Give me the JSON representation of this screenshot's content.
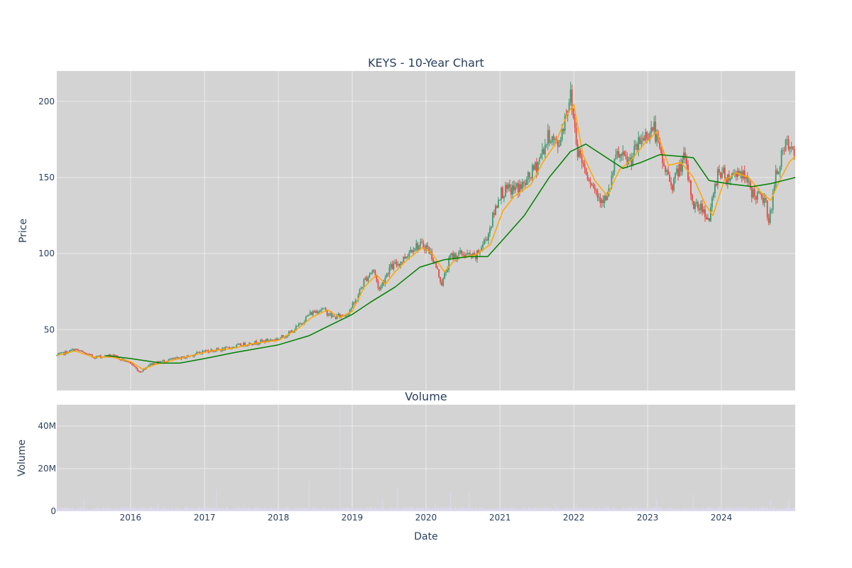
{
  "colors": {
    "plot_bg": "#d3d3d3",
    "grid": "#ebebeb",
    "text": "#2a3f5f",
    "candle_up": "#3d9970",
    "candle_down": "#e8473f",
    "ma_short": "#ffa500",
    "ma_long": "#008000",
    "volume": "#dcd9ee"
  },
  "chart_data": [
    {
      "type": "candlestick",
      "title": "KEYS - 10-Year Chart",
      "xlabel": "",
      "ylabel": "Price",
      "xlim": [
        "2015-01-01",
        "2024-12-31"
      ],
      "ylim": [
        10,
        220
      ],
      "yticks": [
        50,
        100,
        150,
        200
      ],
      "grid": true,
      "series": [
        {
          "kind": "ohlc-approx-close",
          "points": [
            [
              "2015-01-01",
              33
            ],
            [
              "2015-04-01",
              37
            ],
            [
              "2015-07-01",
              32
            ],
            [
              "2015-10-01",
              33
            ],
            [
              "2016-01-01",
              28
            ],
            [
              "2016-02-15",
              22
            ],
            [
              "2016-04-01",
              27
            ],
            [
              "2016-07-01",
              30
            ],
            [
              "2016-10-01",
              32
            ],
            [
              "2017-01-01",
              36
            ],
            [
              "2017-04-01",
              37
            ],
            [
              "2017-07-01",
              40
            ],
            [
              "2017-10-01",
              42
            ],
            [
              "2018-01-01",
              44
            ],
            [
              "2018-03-01",
              48
            ],
            [
              "2018-04-15",
              53
            ],
            [
              "2018-06-01",
              60
            ],
            [
              "2018-08-01",
              64
            ],
            [
              "2018-10-01",
              58
            ],
            [
              "2018-12-01",
              60
            ],
            [
              "2019-01-15",
              68
            ],
            [
              "2019-03-01",
              82
            ],
            [
              "2019-04-15",
              90
            ],
            [
              "2019-05-15",
              76
            ],
            [
              "2019-07-01",
              90
            ],
            [
              "2019-09-01",
              95
            ],
            [
              "2019-11-01",
              105
            ],
            [
              "2020-01-01",
              105
            ],
            [
              "2020-02-01",
              98
            ],
            [
              "2020-03-20",
              80
            ],
            [
              "2020-05-01",
              98
            ],
            [
              "2020-07-01",
              100
            ],
            [
              "2020-09-01",
              97
            ],
            [
              "2020-11-01",
              112
            ],
            [
              "2021-01-01",
              140
            ],
            [
              "2021-03-01",
              142
            ],
            [
              "2021-05-01",
              145
            ],
            [
              "2021-07-01",
              158
            ],
            [
              "2021-09-01",
              178
            ],
            [
              "2021-10-15",
              170
            ],
            [
              "2021-12-15",
              205
            ],
            [
              "2022-01-20",
              168
            ],
            [
              "2022-03-01",
              155
            ],
            [
              "2022-05-01",
              138
            ],
            [
              "2022-06-15",
              135
            ],
            [
              "2022-08-01",
              165
            ],
            [
              "2022-10-01",
              160
            ],
            [
              "2022-12-01",
              175
            ],
            [
              "2023-02-01",
              183
            ],
            [
              "2023-03-15",
              160
            ],
            [
              "2023-05-01",
              145
            ],
            [
              "2023-07-01",
              163
            ],
            [
              "2023-08-15",
              132
            ],
            [
              "2023-10-01",
              130
            ],
            [
              "2023-11-01",
              122
            ],
            [
              "2023-12-15",
              155
            ],
            [
              "2024-02-01",
              150
            ],
            [
              "2024-04-01",
              155
            ],
            [
              "2024-06-01",
              140
            ],
            [
              "2024-08-01",
              135
            ],
            [
              "2024-08-25",
              122
            ],
            [
              "2024-10-01",
              155
            ],
            [
              "2024-11-20",
              172
            ],
            [
              "2024-12-31",
              162
            ]
          ]
        },
        {
          "name": "",
          "kind": "line",
          "color_key": "ma_short",
          "points": [
            [
              "2015-01-01",
              33
            ],
            [
              "2015-04-01",
              36
            ],
            [
              "2015-07-01",
              32
            ],
            [
              "2015-10-01",
              32
            ],
            [
              "2016-01-01",
              29
            ],
            [
              "2016-03-01",
              24
            ],
            [
              "2016-05-01",
              27
            ],
            [
              "2016-08-01",
              30
            ],
            [
              "2016-11-01",
              33
            ],
            [
              "2017-02-01",
              36
            ],
            [
              "2017-06-01",
              38
            ],
            [
              "2017-09-01",
              41
            ],
            [
              "2018-01-01",
              43
            ],
            [
              "2018-04-01",
              50
            ],
            [
              "2018-06-15",
              58
            ],
            [
              "2018-09-01",
              63
            ],
            [
              "2018-11-01",
              58
            ],
            [
              "2019-01-01",
              62
            ],
            [
              "2019-03-01",
              78
            ],
            [
              "2019-05-01",
              86
            ],
            [
              "2019-06-15",
              80
            ],
            [
              "2019-08-01",
              88
            ],
            [
              "2019-10-01",
              96
            ],
            [
              "2019-12-15",
              104
            ],
            [
              "2020-02-01",
              100
            ],
            [
              "2020-04-01",
              88
            ],
            [
              "2020-06-01",
              97
            ],
            [
              "2020-09-01",
              99
            ],
            [
              "2020-11-15",
              106
            ],
            [
              "2021-01-15",
              128
            ],
            [
              "2021-03-15",
              138
            ],
            [
              "2021-06-01",
              145
            ],
            [
              "2021-08-01",
              160
            ],
            [
              "2021-10-01",
              172
            ],
            [
              "2021-12-01",
              192
            ],
            [
              "2022-01-01",
              198
            ],
            [
              "2022-02-15",
              165
            ],
            [
              "2022-04-15",
              148
            ],
            [
              "2022-06-15",
              138
            ],
            [
              "2022-08-15",
              155
            ],
            [
              "2022-10-15",
              162
            ],
            [
              "2022-12-15",
              172
            ],
            [
              "2023-02-15",
              180
            ],
            [
              "2023-04-15",
              158
            ],
            [
              "2023-06-15",
              160
            ],
            [
              "2023-08-15",
              150
            ],
            [
              "2023-10-15",
              132
            ],
            [
              "2023-11-20",
              125
            ],
            [
              "2024-01-15",
              148
            ],
            [
              "2024-03-15",
              153
            ],
            [
              "2024-05-15",
              150
            ],
            [
              "2024-07-15",
              140
            ],
            [
              "2024-09-01",
              135
            ],
            [
              "2024-10-15",
              148
            ],
            [
              "2024-12-01",
              160
            ],
            [
              "2024-12-31",
              164
            ]
          ]
        },
        {
          "name": "",
          "kind": "line",
          "color_key": "ma_long",
          "points": [
            [
              "2015-09-01",
              33
            ],
            [
              "2016-01-01",
              31
            ],
            [
              "2016-06-01",
              28
            ],
            [
              "2016-09-01",
              28
            ],
            [
              "2017-01-01",
              31
            ],
            [
              "2017-06-01",
              35
            ],
            [
              "2018-01-01",
              40
            ],
            [
              "2018-06-01",
              46
            ],
            [
              "2018-10-01",
              54
            ],
            [
              "2019-01-01",
              60
            ],
            [
              "2019-04-01",
              68
            ],
            [
              "2019-08-01",
              78
            ],
            [
              "2019-12-01",
              91
            ],
            [
              "2020-04-01",
              96
            ],
            [
              "2020-08-01",
              98
            ],
            [
              "2020-11-01",
              98
            ],
            [
              "2021-01-01",
              107
            ],
            [
              "2021-05-01",
              125
            ],
            [
              "2021-09-01",
              150
            ],
            [
              "2021-12-15",
              167
            ],
            [
              "2022-03-01",
              172
            ],
            [
              "2022-06-01",
              164
            ],
            [
              "2022-09-01",
              156
            ],
            [
              "2022-12-01",
              160
            ],
            [
              "2023-03-01",
              165
            ],
            [
              "2023-06-01",
              164
            ],
            [
              "2023-08-15",
              163
            ],
            [
              "2023-11-01",
              148
            ],
            [
              "2024-02-01",
              146
            ],
            [
              "2024-06-01",
              144
            ],
            [
              "2024-09-01",
              146
            ],
            [
              "2024-11-01",
              148
            ],
            [
              "2024-12-31",
              150
            ]
          ]
        }
      ]
    },
    {
      "type": "bar",
      "title": "Volume",
      "xlabel": "Date",
      "ylabel": "Volume",
      "xlim": [
        "2015-01-01",
        "2024-12-31"
      ],
      "ylim": [
        0,
        50000000
      ],
      "yticks": [
        0,
        20000000,
        40000000
      ],
      "ytick_labels": [
        "0",
        "20M",
        "40M"
      ],
      "xticks": [
        "2016-01-01",
        "2017-01-01",
        "2018-01-01",
        "2019-01-01",
        "2020-01-01",
        "2021-01-01",
        "2022-01-01",
        "2023-01-01",
        "2024-01-01"
      ],
      "xtick_labels": [
        "2016",
        "2017",
        "2018",
        "2019",
        "2020",
        "2021",
        "2022",
        "2023",
        "2024"
      ],
      "grid": true,
      "base_volume": 1500000,
      "spikes": [
        [
          "2015-05-15",
          6000000
        ],
        [
          "2016-05-15",
          3500000
        ],
        [
          "2017-03-01",
          10000000
        ],
        [
          "2017-07-15",
          3000000
        ],
        [
          "2018-06-01",
          14000000
        ],
        [
          "2018-11-01",
          48000000
        ],
        [
          "2019-06-01",
          6000000
        ],
        [
          "2019-08-15",
          11000000
        ],
        [
          "2020-02-15",
          4000000
        ],
        [
          "2020-05-01",
          9000000
        ],
        [
          "2020-08-01",
          9000000
        ],
        [
          "2021-10-01",
          4000000
        ],
        [
          "2022-01-15",
          3000000
        ],
        [
          "2023-02-15",
          6000000
        ],
        [
          "2023-08-15",
          8000000
        ],
        [
          "2024-01-01",
          4000000
        ],
        [
          "2024-09-01",
          5000000
        ],
        [
          "2024-12-01",
          6000000
        ]
      ]
    }
  ]
}
